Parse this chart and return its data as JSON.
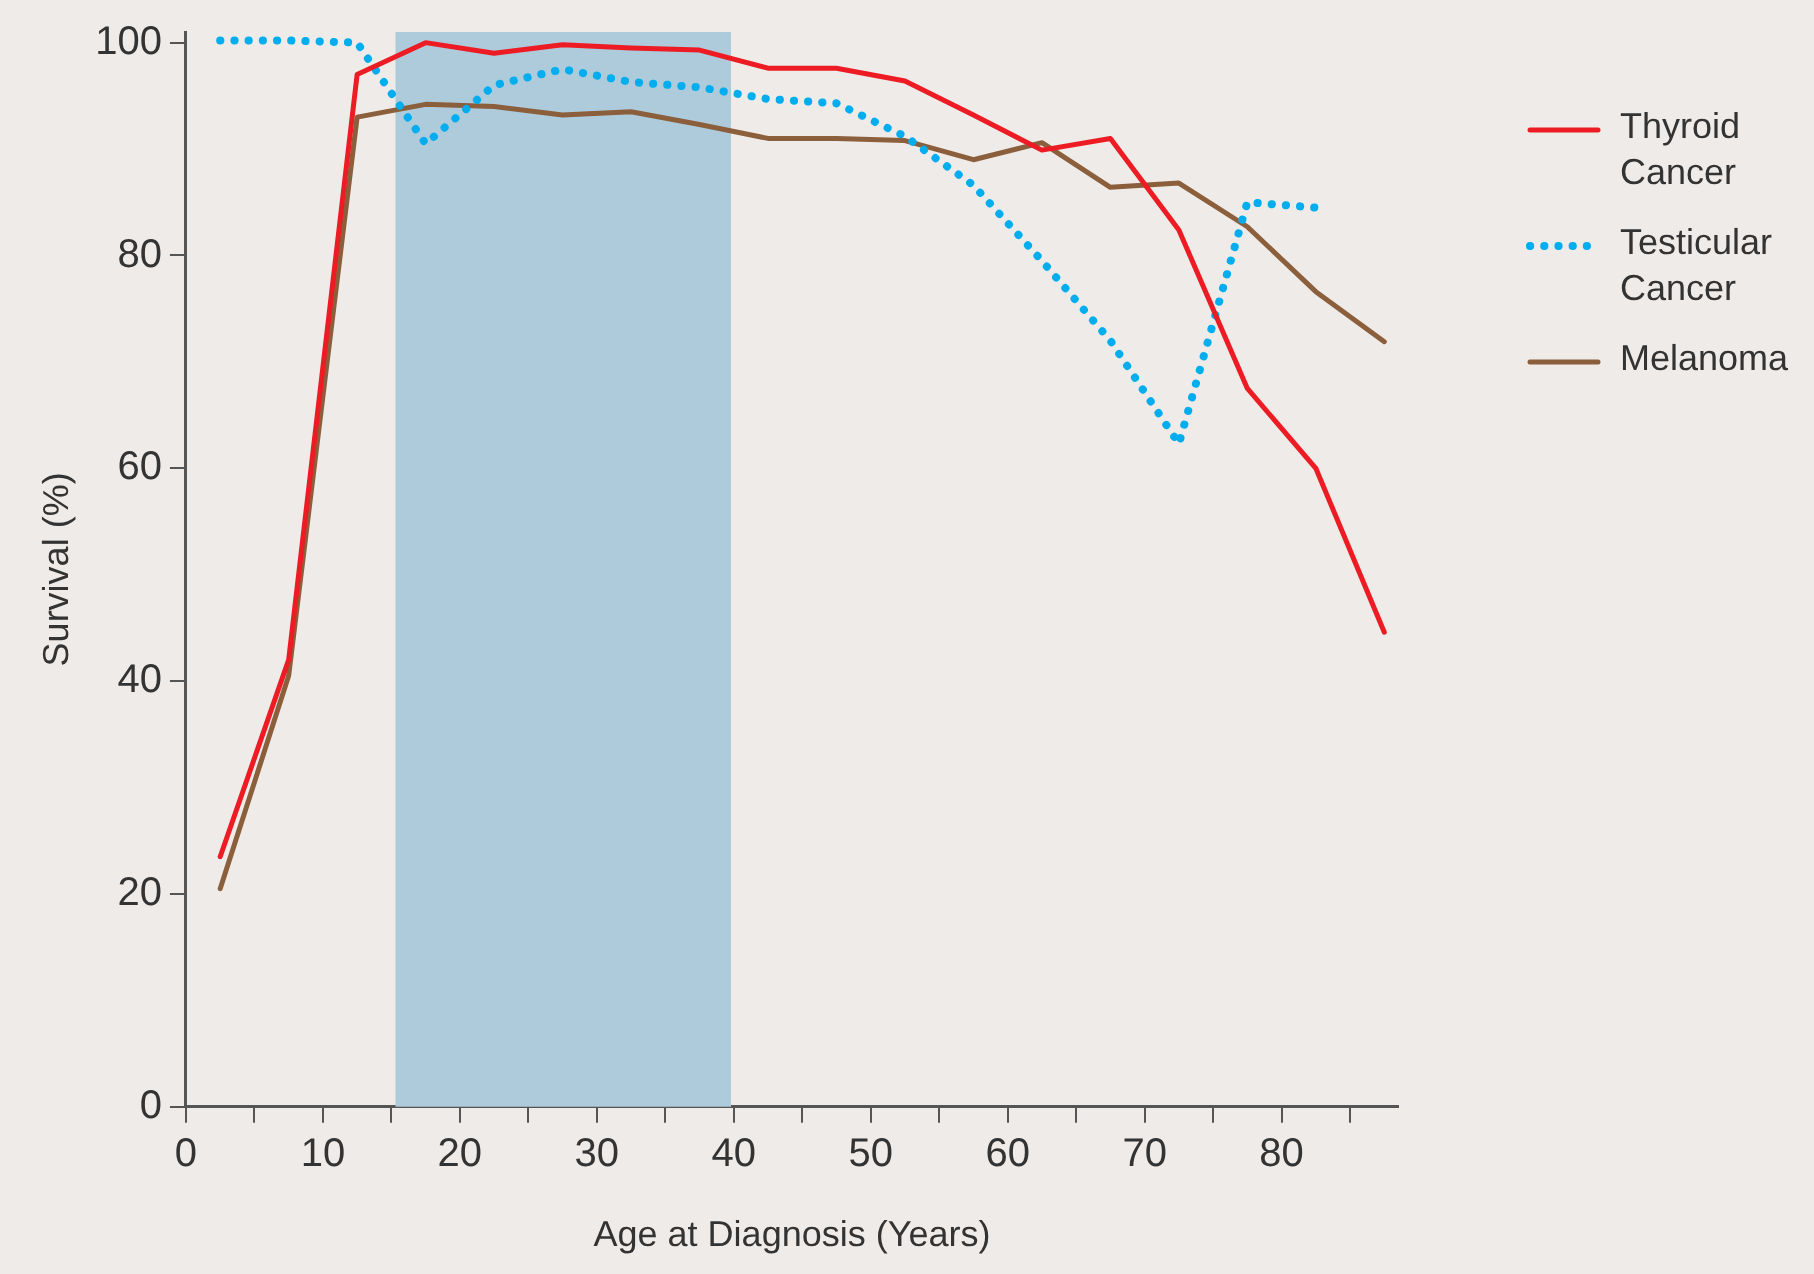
{
  "chart_data": {
    "type": "line",
    "xlabel": "Age at Diagnosis (Years)",
    "ylabel": "Survival (%)",
    "x": [
      2.5,
      7.5,
      12.5,
      17.5,
      22.5,
      27.5,
      32.5,
      37.5,
      42.5,
      47.5,
      52.5,
      57.5,
      62.5,
      67.5,
      72.5,
      77.5,
      82.5,
      87.5
    ],
    "series": [
      {
        "name": "Thyroid Cancer",
        "color": "#ed1c24",
        "line_style": "solid",
        "values": [
          23.5,
          42,
          97,
          100,
          99,
          99.8,
          99.5,
          99.3,
          97.6,
          97.6,
          96.4,
          93.2,
          89.9,
          91,
          82.4,
          67.5,
          60,
          44.6
        ]
      },
      {
        "name": "Testicular Cancer",
        "color": "#00aeef",
        "line_style": "dotted",
        "values": [
          100.2,
          100.2,
          100,
          90.5,
          96,
          97.5,
          96.3,
          95.8,
          94.7,
          94.3,
          91.2,
          86.6,
          79.5,
          72,
          62.3,
          85,
          84.5,
          null
        ]
      },
      {
        "name": "Melanoma",
        "color": "#8b5e3c",
        "line_style": "solid",
        "values": [
          20.5,
          40.5,
          93,
          94.2,
          94,
          93.2,
          93.5,
          92.3,
          91,
          91,
          90.8,
          89,
          90.6,
          86.4,
          86.8,
          82.7,
          76.6,
          71.9
        ]
      }
    ],
    "xlim": [
      0,
      88.5
    ],
    "xticks": [
      0,
      {
        "value": 5,
        "label": null
      },
      10,
      {
        "value": 15,
        "label": null
      },
      20,
      {
        "value": 25,
        "label": null
      },
      30,
      {
        "value": 35,
        "label": null
      },
      40,
      {
        "value": 45,
        "label": null
      },
      50,
      {
        "value": 55,
        "label": null
      },
      60,
      {
        "value": 65,
        "label": null
      },
      70,
      {
        "value": 75,
        "label": null
      },
      80,
      {
        "value": 85,
        "label": null
      }
    ],
    "ylim": [
      0,
      101
    ],
    "yticks": [
      0,
      20,
      40,
      60,
      80,
      100
    ],
    "bands": [
      {
        "axis": "x",
        "from": 15.3,
        "to": 39.8,
        "color": "#adcbdb"
      }
    ],
    "grid": false,
    "legend": "right",
    "marker": "none"
  }
}
